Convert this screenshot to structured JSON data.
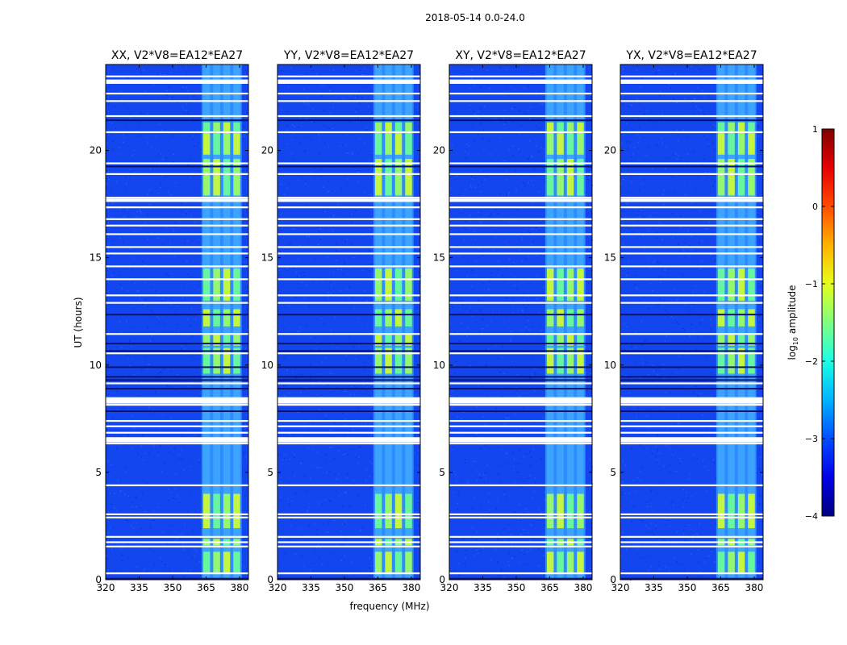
{
  "figure": {
    "suptitle": "2018-05-14 0.0-24.0"
  },
  "chart_data": [
    {
      "type": "heatmap",
      "title": "XX, V2*V8=EA12*EA27",
      "xlabel": "",
      "ylabel": "UT (hours)",
      "xlim": [
        320,
        384
      ],
      "ylim": [
        0,
        24
      ],
      "xticks": [
        "320",
        "335",
        "350",
        "365",
        "380"
      ],
      "yticks": [
        "0",
        "5",
        "10",
        "15",
        "20"
      ],
      "rfi_band_mhz": [
        363,
        381
      ]
    },
    {
      "type": "heatmap",
      "title": "YY, V2*V8=EA12*EA27",
      "xlabel": "frequency (MHz)",
      "ylabel": "",
      "xlim": [
        320,
        384
      ],
      "ylim": [
        0,
        24
      ],
      "xticks": [
        "320",
        "335",
        "350",
        "365",
        "380"
      ],
      "yticks": [
        "0",
        "5",
        "10",
        "15",
        "20"
      ],
      "rfi_band_mhz": [
        363,
        381
      ]
    },
    {
      "type": "heatmap",
      "title": "XY, V2*V8=EA12*EA27",
      "xlabel": "",
      "ylabel": "",
      "xlim": [
        320,
        384
      ],
      "ylim": [
        0,
        24
      ],
      "xticks": [
        "320",
        "335",
        "350",
        "365",
        "380"
      ],
      "yticks": [
        "0",
        "5",
        "10",
        "15",
        "20"
      ],
      "rfi_band_mhz": [
        363,
        381
      ]
    },
    {
      "type": "heatmap",
      "title": "YX, V2*V8=EA12*EA27",
      "xlabel": "",
      "ylabel": "",
      "xlim": [
        320,
        384
      ],
      "ylim": [
        0,
        24
      ],
      "xticks": [
        "320",
        "335",
        "350",
        "365",
        "380"
      ],
      "yticks": [
        "0",
        "5",
        "10",
        "15",
        "20"
      ],
      "rfi_band_mhz": [
        363,
        381
      ]
    }
  ],
  "colorbar": {
    "label": "log",
    "label_sub": "10",
    "label_rest": " amplitude",
    "range": [
      -4,
      1
    ],
    "ticks": [
      "1",
      "0",
      "−1",
      "−2",
      "−3",
      "−4"
    ],
    "colormap": "jet"
  },
  "flagged_hours": [
    0.3,
    1.55,
    1.75,
    2.0,
    2.9,
    3.05,
    4.4,
    6.35,
    6.5,
    6.6,
    6.85,
    7.15,
    7.4,
    8.15,
    8.3,
    8.45,
    9.15,
    10.55,
    11.45,
    12.9,
    13.25,
    14.0,
    14.6,
    15.2,
    15.5,
    16.1,
    16.5,
    16.8,
    17.35,
    17.65,
    17.8,
    18.9,
    19.4,
    20.85,
    21.6,
    22.3,
    22.65,
    23.45
  ],
  "rfi_blocks_hours": [
    [
      0.3,
      1.3
    ],
    [
      1.6,
      1.9
    ],
    [
      2.4,
      4.0
    ],
    [
      9.6,
      10.8
    ],
    [
      10.9,
      11.4
    ],
    [
      11.8,
      12.6
    ],
    [
      13.0,
      14.5
    ],
    [
      17.9,
      19.6
    ],
    [
      19.8,
      20.8
    ],
    [
      20.8,
      21.3
    ]
  ]
}
